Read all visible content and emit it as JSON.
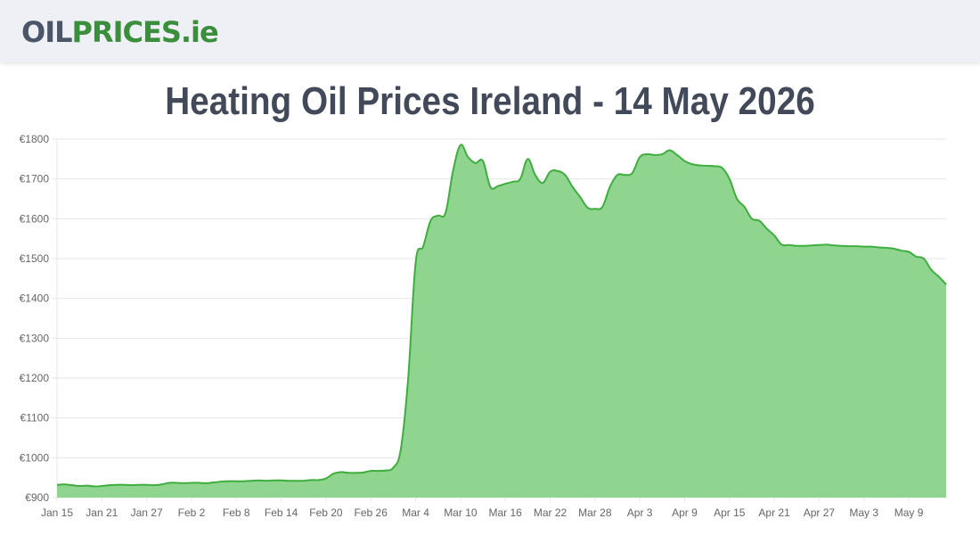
{
  "site": {
    "logo_part1": "OIL",
    "logo_part2": "PRICES.ie"
  },
  "page": {
    "title": "Heating Oil Prices Ireland - 14 May 2026"
  },
  "colors": {
    "line": "#3fae3f",
    "fill": "#8fd48f",
    "grid": "#e6e6e6",
    "title": "#424a5a"
  },
  "chart_data": {
    "type": "area",
    "title": "Heating Oil Prices Ireland - 14 May 2026",
    "xlabel": "",
    "ylabel": "",
    "ylim": [
      900,
      1800
    ],
    "y_ticks": [
      "€1800",
      "€1700",
      "€1600",
      "€1500",
      "€1400",
      "€1300",
      "€1200",
      "€1100",
      "€1000",
      "€900"
    ],
    "y_tick_values": [
      1800,
      1700,
      1600,
      1500,
      1400,
      1300,
      1200,
      1100,
      1000,
      900
    ],
    "x_ticks": [
      "Jan 15",
      "Jan 21",
      "Jan 27",
      "Feb 2",
      "Feb 8",
      "Feb 14",
      "Feb 20",
      "Feb 26",
      "Mar 4",
      "Mar 10",
      "Mar 16",
      "Mar 22",
      "Mar 28",
      "Apr 3",
      "Apr 9",
      "Apr 15",
      "Apr 21",
      "Apr 27",
      "May 3",
      "May 9"
    ],
    "x_tick_days": [
      0,
      6,
      12,
      18,
      24,
      30,
      36,
      42,
      48,
      54,
      60,
      66,
      72,
      78,
      84,
      90,
      96,
      102,
      108,
      114
    ],
    "x_last_day": 119,
    "grid": true,
    "legend": "none",
    "series": [
      {
        "x": [
          0,
          1,
          2,
          3,
          4,
          5,
          6,
          7,
          8,
          9,
          10,
          11,
          12,
          13,
          14,
          15,
          16,
          17,
          18,
          19,
          20,
          21,
          22,
          23,
          24,
          25,
          26,
          27,
          28,
          29,
          30,
          31,
          32,
          33,
          34,
          35,
          36,
          37,
          38,
          39,
          40,
          41,
          42,
          43,
          44,
          45,
          46,
          47,
          48,
          49,
          50,
          51,
          52,
          53,
          54,
          55,
          56,
          57,
          58,
          59,
          60,
          61,
          62,
          63,
          64,
          65,
          66,
          67,
          68,
          69,
          70,
          71,
          72,
          73,
          74,
          75,
          76,
          77,
          78,
          79,
          80,
          81,
          82,
          83,
          84,
          85,
          86,
          87,
          88,
          89,
          90,
          91,
          92,
          93,
          94,
          95,
          96,
          97,
          98,
          99,
          100,
          101,
          102,
          103,
          104,
          105,
          106,
          107,
          108,
          109,
          110,
          111,
          112,
          113,
          114,
          115,
          116,
          117,
          118,
          119
        ],
        "values": [
          932,
          933,
          931,
          929,
          930,
          928,
          929,
          931,
          932,
          932,
          931,
          932,
          932,
          931,
          933,
          937,
          937,
          936,
          937,
          937,
          936,
          938,
          940,
          941,
          941,
          941,
          942,
          943,
          942,
          943,
          943,
          942,
          942,
          942,
          944,
          944,
          948,
          960,
          964,
          962,
          962,
          963,
          967,
          967,
          968,
          975,
          1020,
          1200,
          1490,
          1530,
          1595,
          1608,
          1615,
          1720,
          1785,
          1755,
          1740,
          1745,
          1680,
          1682,
          1688,
          1693,
          1700,
          1750,
          1710,
          1690,
          1718,
          1720,
          1710,
          1680,
          1655,
          1628,
          1625,
          1630,
          1680,
          1710,
          1710,
          1715,
          1755,
          1762,
          1760,
          1762,
          1772,
          1760,
          1745,
          1737,
          1734,
          1733,
          1732,
          1728,
          1700,
          1650,
          1630,
          1600,
          1595,
          1575,
          1558,
          1535,
          1534,
          1532,
          1532,
          1533,
          1534,
          1535,
          1533,
          1532,
          1531,
          1531,
          1530,
          1530,
          1528,
          1527,
          1525,
          1520,
          1517,
          1505,
          1500,
          1472,
          1455,
          1435
        ]
      }
    ]
  }
}
